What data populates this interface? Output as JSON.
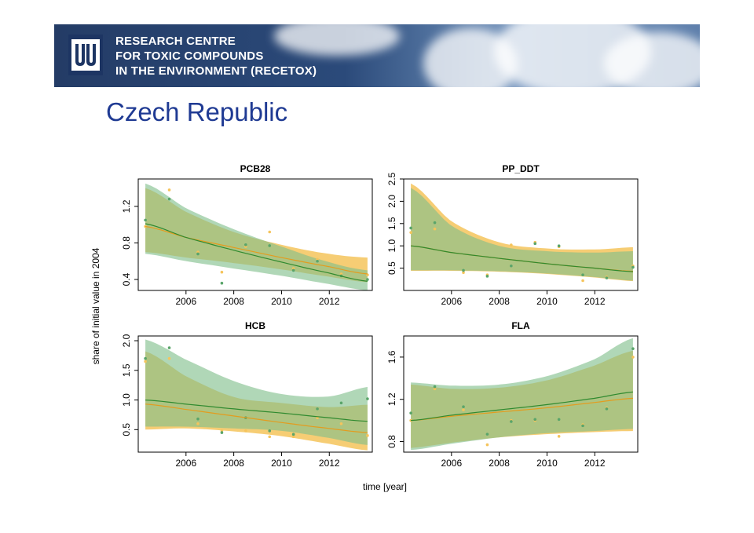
{
  "banner": {
    "logo_text": "MU",
    "lines": [
      "RESEARCH CENTRE",
      "FOR TOXIC COMPOUNDS",
      "IN THE ENVIRONMENT (RECETOX)"
    ]
  },
  "page_title": "Czech Republic",
  "colors": {
    "green_band": "#7fbf8a",
    "orange_band": "#f5c45c",
    "green_line": "#2f8a2f",
    "orange_line": "#e39c1f",
    "title": "#1f3a93"
  },
  "chart_data": {
    "type": "scatter",
    "ylabel": "share of initial value in 2004",
    "xlabel": "time [year]",
    "panels": [
      {
        "id": "pcb28",
        "title": "PCB28",
        "xlim": [
          2004,
          2013.8
        ],
        "ylim": [
          0.28,
          1.5
        ],
        "xticks": [
          2006,
          2008,
          2010,
          2012
        ],
        "xtick_labels": [
          "2006",
          "2008",
          "2010",
          "2012"
        ],
        "yticks": [
          0.4,
          0.8,
          1.2
        ],
        "ytick_labels": [
          "0.4",
          "0.8",
          "1.2"
        ],
        "green": {
          "x": [
            2004.3,
            2006.0,
            2008.0,
            2010.0,
            2012.0,
            2013.6
          ],
          "fit": [
            1.01,
            0.86,
            0.72,
            0.59,
            0.47,
            0.38
          ],
          "lower": [
            0.68,
            0.6,
            0.52,
            0.44,
            0.35,
            0.28
          ],
          "upper": [
            1.45,
            1.18,
            0.95,
            0.76,
            0.59,
            0.5
          ]
        },
        "orange": {
          "x": [
            2004.3,
            2006.0,
            2008.0,
            2010.0,
            2012.0,
            2013.6
          ],
          "fit": [
            0.98,
            0.86,
            0.75,
            0.64,
            0.54,
            0.46
          ],
          "lower": [
            0.7,
            0.64,
            0.58,
            0.51,
            0.43,
            0.37
          ],
          "upper": [
            1.4,
            1.14,
            0.92,
            0.78,
            0.68,
            0.64
          ]
        },
        "points_green": [
          [
            2004.3,
            1.05
          ],
          [
            2005.3,
            1.28
          ],
          [
            2006.5,
            0.68
          ],
          [
            2007.5,
            0.36
          ],
          [
            2008.5,
            0.78
          ],
          [
            2009.5,
            0.77
          ],
          [
            2010.5,
            0.5
          ],
          [
            2011.5,
            0.6
          ],
          [
            2012.5,
            0.44
          ],
          [
            2013.6,
            0.4
          ]
        ],
        "points_orange": [
          [
            2004.3,
            0.98
          ],
          [
            2005.3,
            1.38
          ],
          [
            2006.5,
            0.7
          ],
          [
            2007.5,
            0.48
          ],
          [
            2008.5,
            0.76
          ],
          [
            2009.5,
            0.92
          ],
          [
            2010.5,
            0.52
          ],
          [
            2011.5,
            0.62
          ],
          [
            2012.5,
            0.46
          ],
          [
            2013.6,
            0.45
          ]
        ]
      },
      {
        "id": "pp_ddt",
        "title": "PP_DDT",
        "xlim": [
          2004,
          2013.8
        ],
        "ylim": [
          0.0,
          2.5
        ],
        "xticks": [
          2006,
          2008,
          2010,
          2012
        ],
        "xtick_labels": [
          "2006",
          "2008",
          "2010",
          "2012"
        ],
        "yticks": [
          0.5,
          1.0,
          1.5,
          2.0,
          2.5
        ],
        "ytick_labels": [
          "0.5",
          "1.0",
          "1.5",
          "2.0",
          "2.5"
        ],
        "green": {
          "x": [
            2004.3,
            2006.0,
            2008.0,
            2010.0,
            2012.0,
            2013.6
          ],
          "fit": [
            1.0,
            0.85,
            0.72,
            0.6,
            0.5,
            0.42
          ],
          "lower": [
            0.45,
            0.45,
            0.43,
            0.38,
            0.3,
            0.22
          ],
          "upper": [
            2.3,
            1.45,
            1.0,
            0.88,
            0.85,
            0.88
          ]
        },
        "orange": {
          "x": [
            2004.3,
            2006.0,
            2008.0,
            2010.0,
            2012.0,
            2013.6
          ],
          "fit": [
            1.0,
            0.85,
            0.72,
            0.6,
            0.5,
            0.43
          ],
          "lower": [
            0.44,
            0.44,
            0.42,
            0.37,
            0.29,
            0.21
          ],
          "upper": [
            2.4,
            1.55,
            1.08,
            0.94,
            0.92,
            0.97
          ]
        },
        "points_green": [
          [
            2004.3,
            1.4
          ],
          [
            2005.3,
            1.52
          ],
          [
            2006.5,
            0.45
          ],
          [
            2007.5,
            0.32
          ],
          [
            2008.5,
            0.55
          ],
          [
            2009.5,
            1.05
          ],
          [
            2010.5,
            1.0
          ],
          [
            2011.5,
            0.35
          ],
          [
            2012.5,
            0.28
          ],
          [
            2013.6,
            0.52
          ]
        ],
        "points_orange": [
          [
            2004.3,
            1.3
          ],
          [
            2005.3,
            1.38
          ],
          [
            2006.5,
            0.4
          ],
          [
            2007.5,
            0.35
          ],
          [
            2008.5,
            1.02
          ],
          [
            2009.5,
            1.08
          ],
          [
            2010.5,
            0.98
          ],
          [
            2011.5,
            0.22
          ],
          [
            2012.5,
            0.3
          ],
          [
            2013.6,
            0.55
          ]
        ]
      },
      {
        "id": "hcb",
        "title": "HCB",
        "xlim": [
          2004,
          2013.8
        ],
        "ylim": [
          0.12,
          2.08
        ],
        "xticks": [
          2006,
          2008,
          2010,
          2012
        ],
        "xtick_labels": [
          "2006",
          "2008",
          "2010",
          "2012"
        ],
        "yticks": [
          0.5,
          1.0,
          1.5,
          2.0
        ],
        "ytick_labels": [
          "0.5",
          "1.0",
          "1.5",
          "2.0"
        ],
        "green": {
          "x": [
            2004.3,
            2006.0,
            2008.0,
            2010.0,
            2012.0,
            2013.6
          ],
          "fit": [
            1.0,
            0.93,
            0.85,
            0.78,
            0.7,
            0.64
          ],
          "lower": [
            0.55,
            0.55,
            0.52,
            0.48,
            0.36,
            0.24
          ],
          "upper": [
            2.02,
            1.68,
            1.32,
            1.1,
            1.06,
            1.22
          ]
        },
        "orange": {
          "x": [
            2004.3,
            2006.0,
            2008.0,
            2010.0,
            2012.0,
            2013.6
          ],
          "fit": [
            0.93,
            0.84,
            0.73,
            0.62,
            0.52,
            0.45
          ],
          "lower": [
            0.5,
            0.52,
            0.47,
            0.39,
            0.26,
            0.15
          ],
          "upper": [
            1.82,
            1.4,
            1.05,
            0.95,
            0.88,
            0.92
          ]
        },
        "points_green": [
          [
            2004.3,
            1.7
          ],
          [
            2005.3,
            1.88
          ],
          [
            2006.5,
            0.68
          ],
          [
            2007.5,
            0.45
          ],
          [
            2008.5,
            0.7
          ],
          [
            2009.5,
            0.48
          ],
          [
            2010.5,
            0.42
          ],
          [
            2011.5,
            0.85
          ],
          [
            2012.5,
            0.95
          ],
          [
            2013.6,
            1.02
          ]
        ],
        "points_orange": [
          [
            2004.3,
            1.65
          ],
          [
            2005.3,
            1.7
          ],
          [
            2006.5,
            0.6
          ],
          [
            2007.5,
            0.48
          ],
          [
            2008.5,
            0.48
          ],
          [
            2009.5,
            0.38
          ],
          [
            2010.5,
            0.38
          ],
          [
            2011.5,
            0.7
          ],
          [
            2012.5,
            0.6
          ],
          [
            2013.6,
            0.4
          ]
        ]
      },
      {
        "id": "fla",
        "title": "FLA",
        "xlim": [
          2004,
          2013.8
        ],
        "ylim": [
          0.7,
          1.8
        ],
        "xticks": [
          2006,
          2008,
          2010,
          2012
        ],
        "xtick_labels": [
          "2006",
          "2008",
          "2010",
          "2012"
        ],
        "yticks": [
          0.8,
          1.2,
          1.6
        ],
        "ytick_labels": [
          "0.8",
          "1.2",
          "1.6"
        ],
        "green": {
          "x": [
            2004.3,
            2006.0,
            2008.0,
            2010.0,
            2012.0,
            2013.6
          ],
          "fit": [
            1.0,
            1.05,
            1.1,
            1.15,
            1.21,
            1.27
          ],
          "lower": [
            0.72,
            0.78,
            0.84,
            0.88,
            0.9,
            0.92
          ],
          "upper": [
            1.36,
            1.33,
            1.34,
            1.42,
            1.58,
            1.78
          ]
        },
        "orange": {
          "x": [
            2004.3,
            2006.0,
            2008.0,
            2010.0,
            2012.0,
            2013.6
          ],
          "fit": [
            1.0,
            1.04,
            1.08,
            1.12,
            1.17,
            1.21
          ],
          "lower": [
            0.74,
            0.79,
            0.84,
            0.87,
            0.89,
            0.9
          ],
          "upper": [
            1.34,
            1.3,
            1.31,
            1.38,
            1.52,
            1.66
          ]
        },
        "points_green": [
          [
            2004.3,
            1.07
          ],
          [
            2005.3,
            1.32
          ],
          [
            2006.5,
            1.13
          ],
          [
            2007.5,
            0.87
          ],
          [
            2008.5,
            0.99
          ],
          [
            2009.5,
            1.01
          ],
          [
            2010.5,
            1.01
          ],
          [
            2011.5,
            0.95
          ],
          [
            2012.5,
            1.11
          ],
          [
            2013.6,
            1.68
          ]
        ],
        "points_orange": [
          [
            2004.3,
            1.0
          ],
          [
            2005.3,
            1.3
          ],
          [
            2006.5,
            1.1
          ],
          [
            2007.5,
            0.77
          ],
          [
            2008.5,
            1.0
          ],
          [
            2009.5,
            1.0
          ],
          [
            2010.5,
            0.85
          ],
          [
            2011.5,
            0.96
          ],
          [
            2012.5,
            1.12
          ],
          [
            2013.6,
            1.6
          ]
        ]
      }
    ]
  }
}
